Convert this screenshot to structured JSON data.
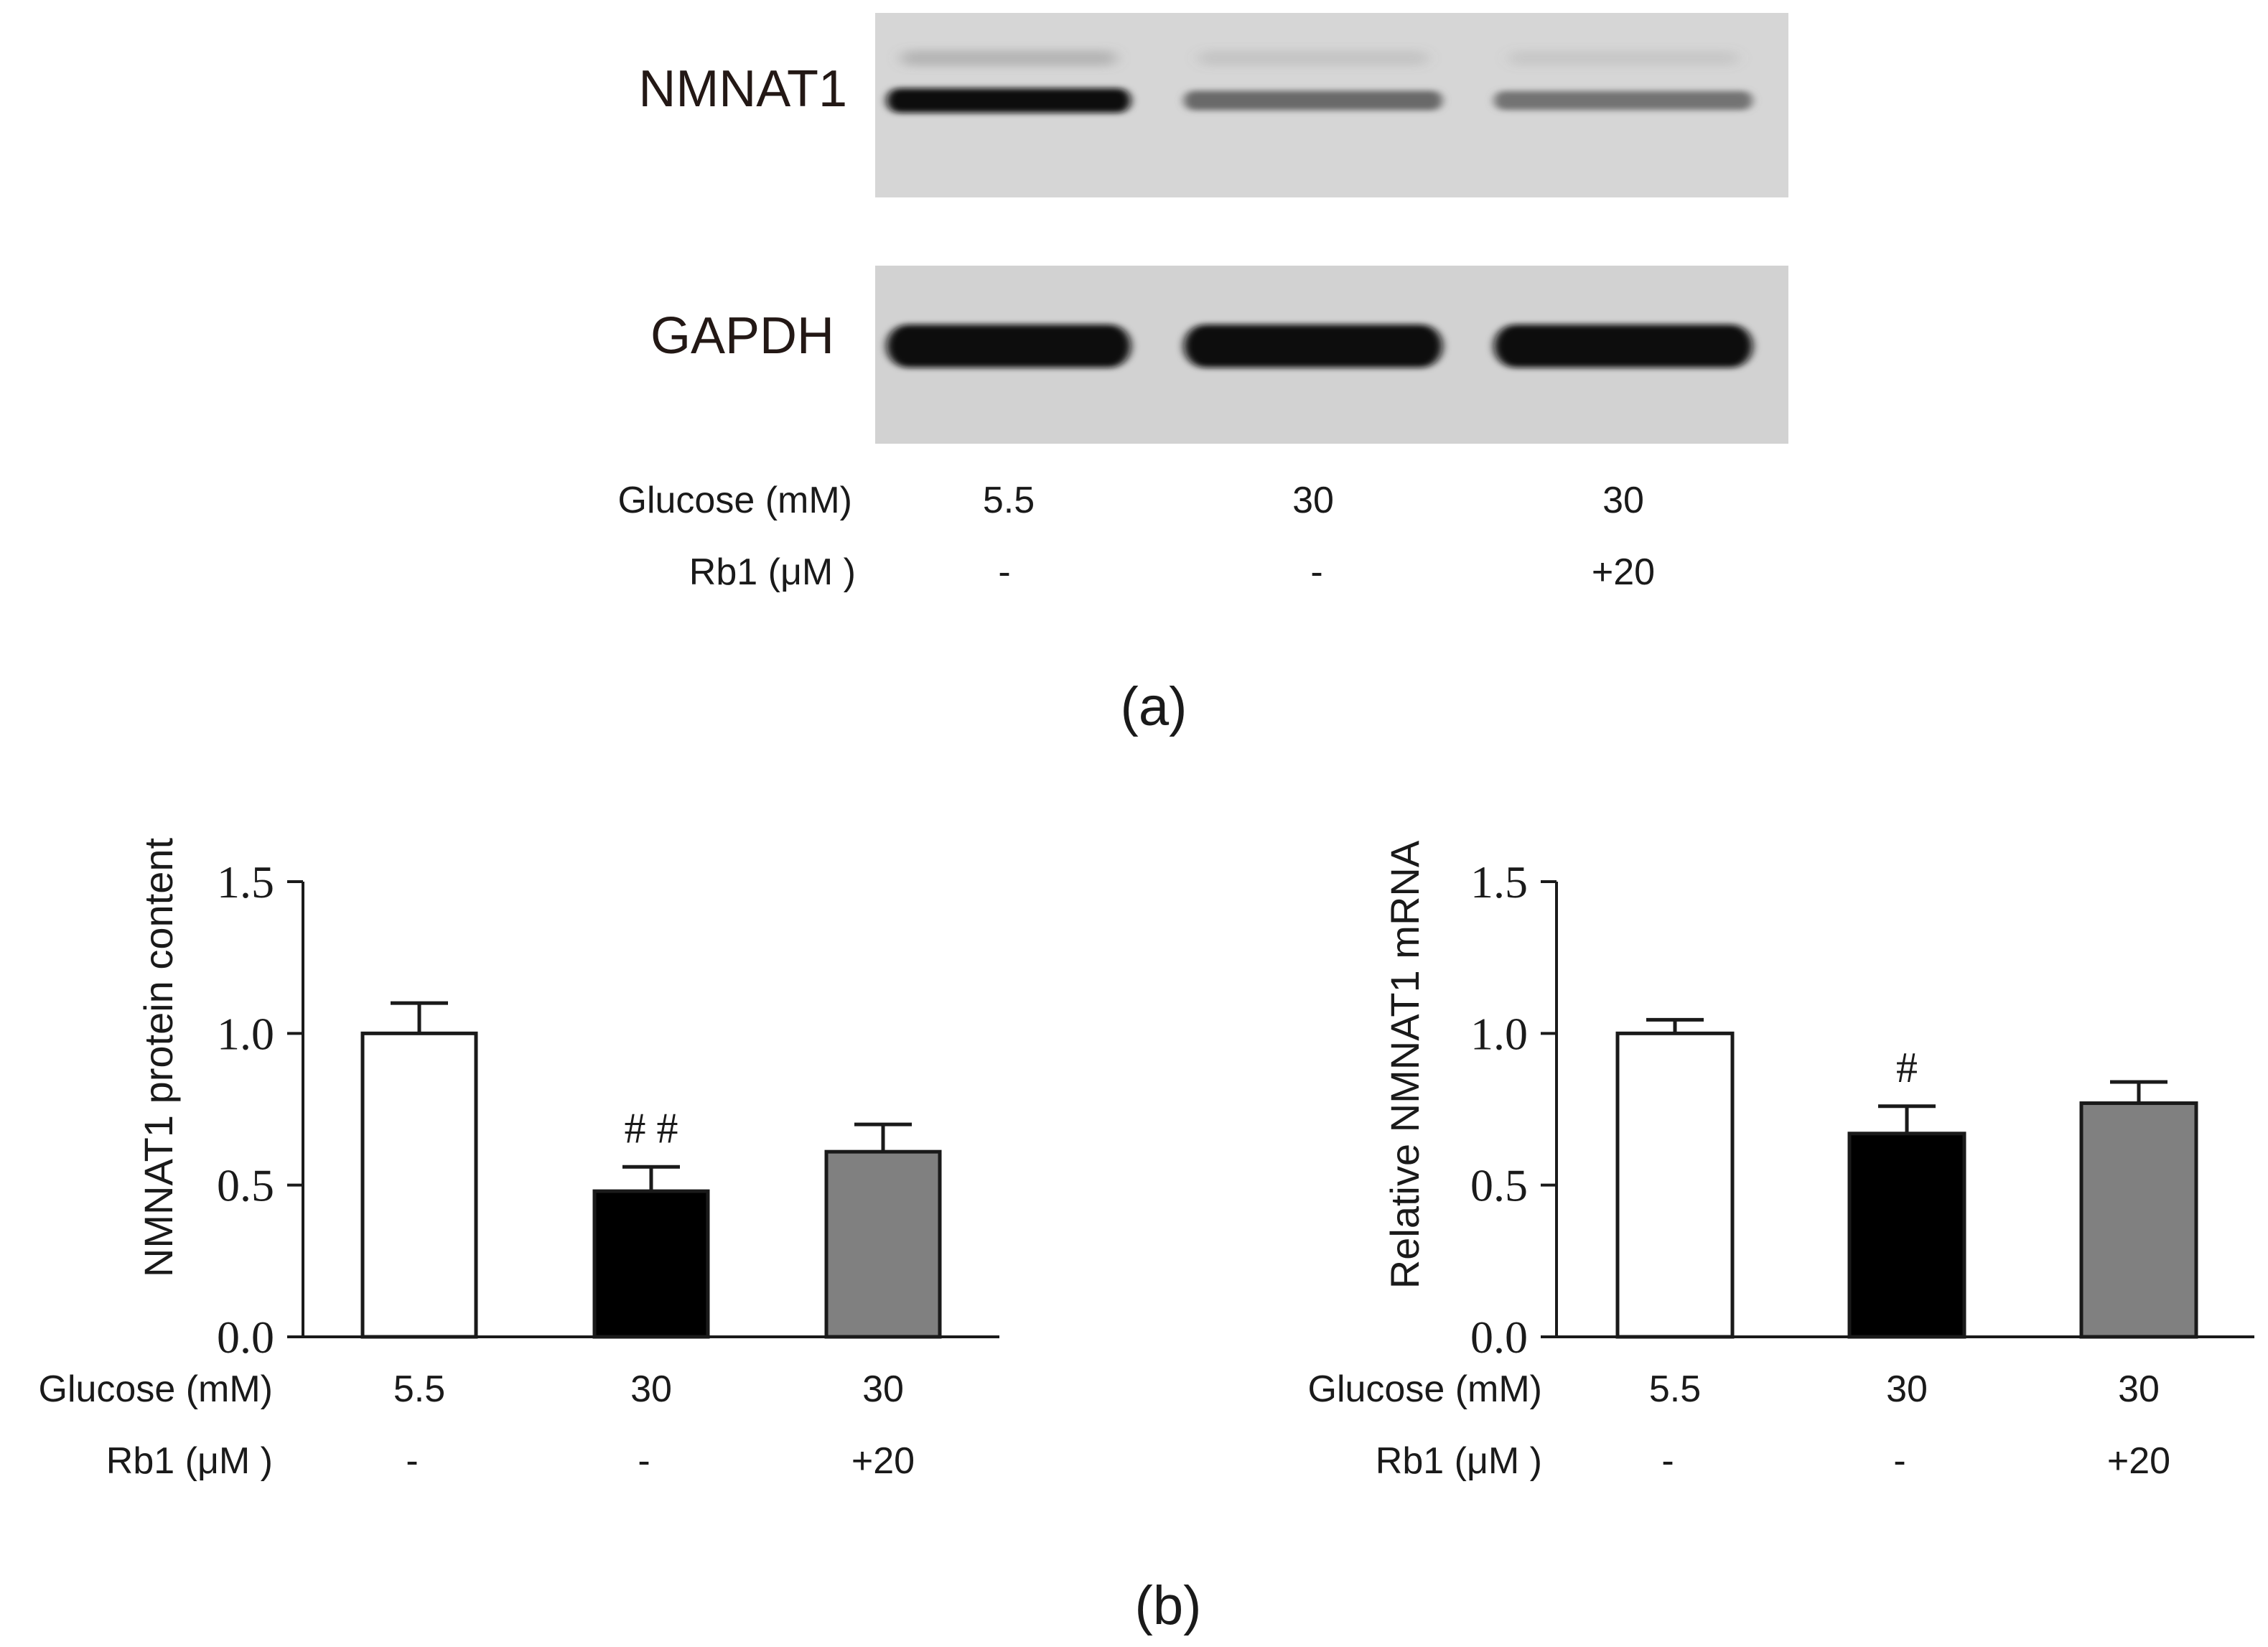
{
  "figure": {
    "panel_a_label": "(a)",
    "panel_b_label": "(b)"
  },
  "blot": {
    "lanes": 3,
    "bands": [
      {
        "label": "NMNAT1",
        "intensity": [
          1.0,
          0.5,
          0.45
        ]
      },
      {
        "label": "GAPDH",
        "intensity": [
          1.0,
          1.0,
          1.0
        ]
      }
    ],
    "conditions": [
      {
        "label": "Glucose (mM)",
        "values": [
          "5.5",
          "30",
          "30"
        ]
      },
      {
        "label": "Rb1 (μM )",
        "values": [
          "-",
          "-",
          "+20"
        ]
      }
    ]
  },
  "chart_data": [
    {
      "type": "bar",
      "categories": [
        "5.5",
        "30",
        "30"
      ],
      "values": [
        1.0,
        0.48,
        0.61
      ],
      "errors": [
        0.1,
        0.08,
        0.09
      ],
      "colors": [
        "#ffffff",
        "#000000",
        "#808080"
      ],
      "significance": [
        "",
        "# #",
        ""
      ],
      "ylabel": "NMNAT1 protein content",
      "ylim": [
        0,
        1.5
      ],
      "yticks": [
        "0.0",
        "0.5",
        "1.0",
        "1.5"
      ],
      "conditions": [
        {
          "label": "Glucose (mM)",
          "values": [
            "5.5",
            "30",
            "30"
          ]
        },
        {
          "label": "Rb1 (μM )",
          "values": [
            "-",
            "-",
            "+20"
          ]
        }
      ]
    },
    {
      "type": "bar",
      "categories": [
        "5.5",
        "30",
        "30"
      ],
      "values": [
        1.0,
        0.67,
        0.77
      ],
      "errors": [
        0.045,
        0.09,
        0.07
      ],
      "colors": [
        "#ffffff",
        "#000000",
        "#808080"
      ],
      "significance": [
        "",
        "#",
        ""
      ],
      "ylabel": "Relative NMNAT1 mRNA",
      "ylim": [
        0,
        1.5
      ],
      "yticks": [
        "0.0",
        "0.5",
        "1.0",
        "1.5"
      ],
      "conditions": [
        {
          "label": "Glucose (mM)",
          "values": [
            "5.5",
            "30",
            "30"
          ]
        },
        {
          "label": "Rb1 (μM )",
          "values": [
            "-",
            "-",
            "+20"
          ]
        }
      ]
    }
  ]
}
